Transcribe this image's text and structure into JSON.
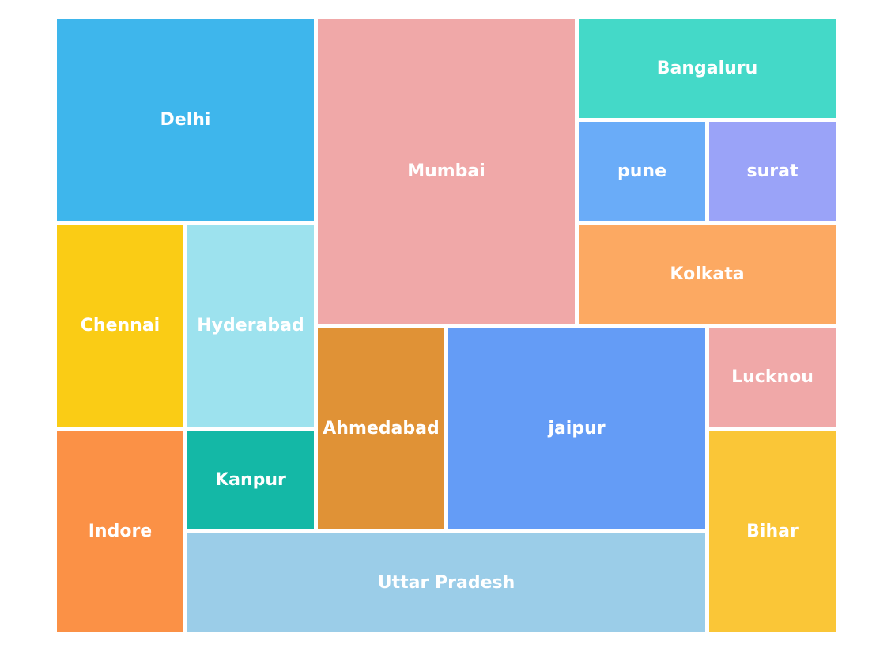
{
  "chart_data": {
    "type": "treemap",
    "title": "",
    "tiles": [
      {
        "name": "Delhi",
        "value": 1,
        "color": "#3eb6ec"
      },
      {
        "name": "Mumbai",
        "value": 1,
        "color": "#f0a8a8"
      },
      {
        "name": "Bangaluru",
        "value": 1,
        "color": "#44d9c8"
      },
      {
        "name": "pune",
        "value": 1,
        "color": "#6aacf8"
      },
      {
        "name": "surat",
        "value": 1,
        "color": "#9aa3f8"
      },
      {
        "name": "Kolkata",
        "value": 1,
        "color": "#fca962"
      },
      {
        "name": "Chennai",
        "value": 1,
        "color": "#facc15"
      },
      {
        "name": "Hyderabad",
        "value": 1,
        "color": "#9de2ee"
      },
      {
        "name": "Ahmedabad",
        "value": 1,
        "color": "#e09236"
      },
      {
        "name": "jaipur",
        "value": 1,
        "color": "#649cf6"
      },
      {
        "name": "Lucknou",
        "value": 1,
        "color": "#f0a8a8"
      },
      {
        "name": "Indore",
        "value": 1,
        "color": "#fb9146"
      },
      {
        "name": "Kanpur",
        "value": 1,
        "color": "#14b8a6"
      },
      {
        "name": "Uttar Pradesh",
        "value": 1,
        "color": "#9bcde8"
      },
      {
        "name": "Bihar",
        "value": 1,
        "color": "#fac637"
      }
    ]
  }
}
